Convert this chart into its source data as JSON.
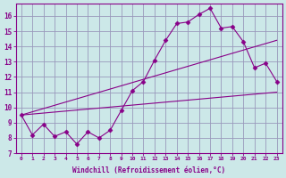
{
  "bg_color": "#cce8e8",
  "grid_color": "#9999bb",
  "line_color": "#880088",
  "xlabel": "Windchill (Refroidissement éolien,°C)",
  "xlim": [
    -0.5,
    23.5
  ],
  "ylim": [
    7,
    16.8
  ],
  "xticks": [
    0,
    1,
    2,
    3,
    4,
    5,
    6,
    7,
    8,
    9,
    10,
    11,
    12,
    13,
    14,
    15,
    16,
    17,
    18,
    19,
    20,
    21,
    22,
    23
  ],
  "yticks": [
    7,
    8,
    9,
    10,
    11,
    12,
    13,
    14,
    15,
    16
  ],
  "series1_x": [
    0,
    1,
    2,
    3,
    4,
    5,
    6,
    7,
    8,
    9,
    10,
    11,
    12,
    13,
    14,
    15,
    16,
    17,
    18,
    19,
    20,
    21,
    22,
    23
  ],
  "series1_y": [
    9.5,
    8.2,
    8.9,
    8.1,
    8.4,
    7.6,
    8.4,
    8.0,
    8.5,
    9.8,
    11.1,
    11.7,
    13.1,
    14.4,
    15.5,
    15.6,
    16.1,
    16.5,
    15.2,
    15.3,
    14.3,
    12.6,
    12.9,
    11.7
  ],
  "series2_x": [
    0,
    23
  ],
  "series2_y": [
    9.5,
    11.0
  ],
  "series3_x": [
    0,
    23
  ],
  "series3_y": [
    9.5,
    14.4
  ]
}
